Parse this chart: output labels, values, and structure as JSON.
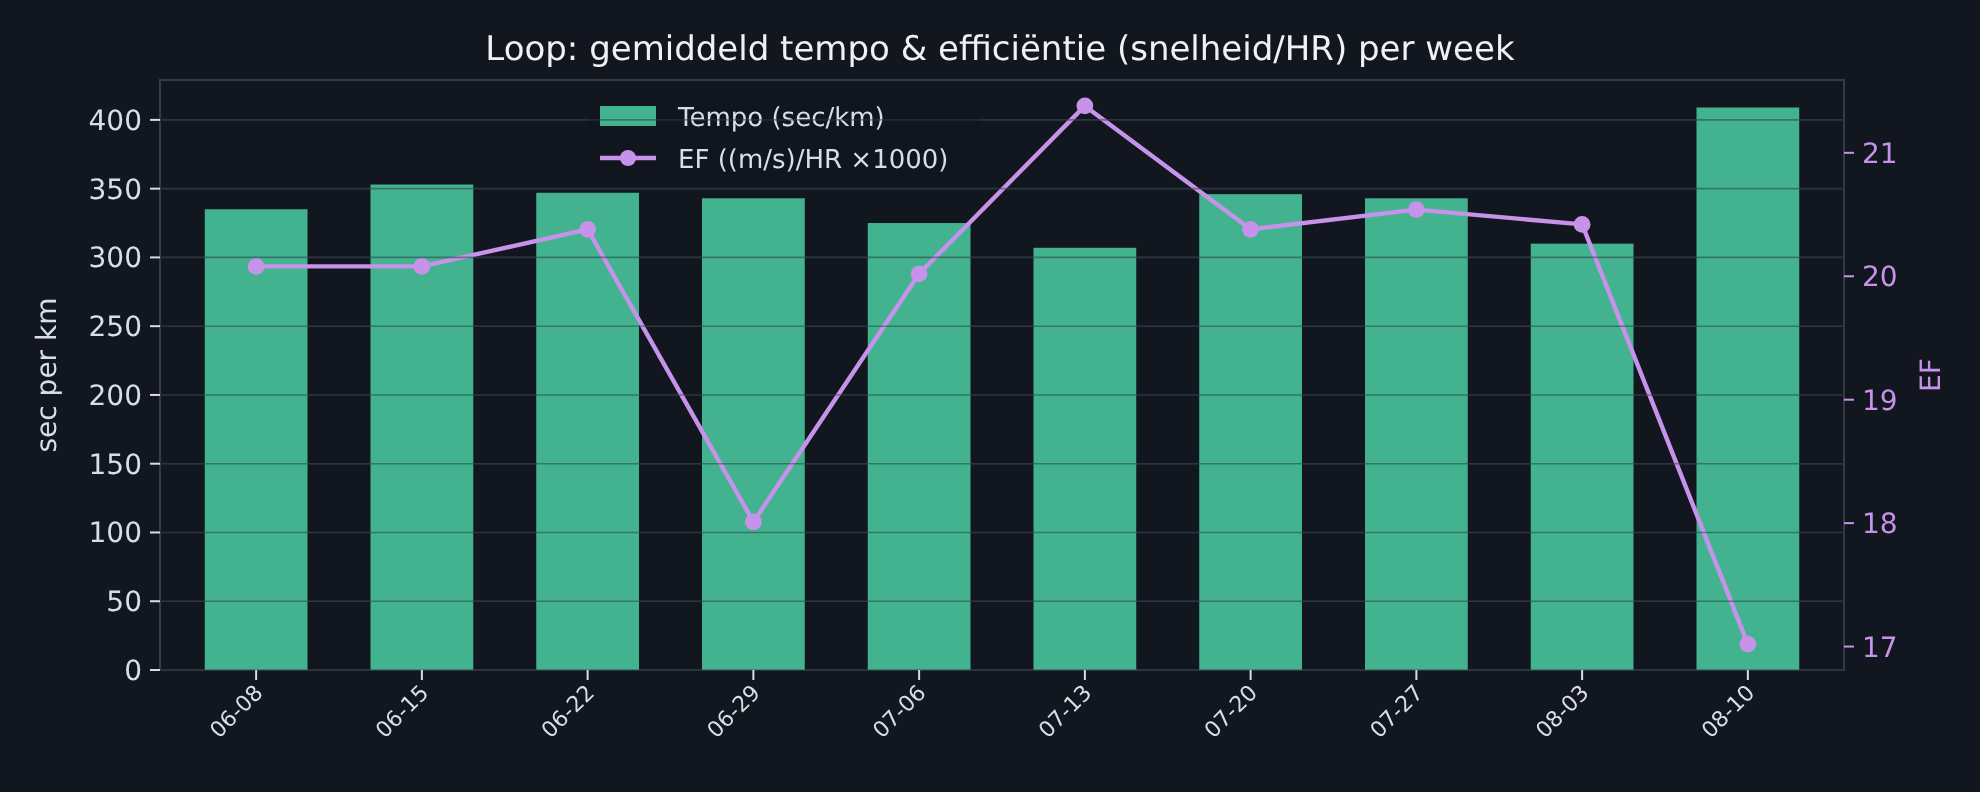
{
  "chart_data": {
    "type": "bar",
    "title": "Loop: gemiddeld tempo & efficiëntie (snelheid/HR) per week",
    "ylabel": "sec per km",
    "y2label": "EF",
    "categories": [
      "06-08",
      "06-15",
      "06-22",
      "06-29",
      "07-06",
      "07-13",
      "07-20",
      "07-27",
      "08-03",
      "08-10"
    ],
    "series": [
      {
        "name": "Tempo (sec/km)",
        "color": "#43b38f",
        "values": [
          335,
          353,
          347,
          343,
          325,
          307,
          346,
          343,
          310,
          409
        ]
      },
      {
        "name": "EF ((m/s)/HR ×1000)",
        "type": "line",
        "axis": "y2",
        "color": "#c792ea",
        "marker": "circle",
        "values": [
          20.08,
          20.08,
          20.38,
          18.01,
          20.02,
          21.38,
          20.38,
          20.54,
          20.42,
          17.02
        ]
      }
    ],
    "ylim": [
      0,
      429
    ],
    "yticks": [
      0,
      50,
      100,
      150,
      200,
      250,
      300,
      350,
      400
    ],
    "y2lim": [
      16.81,
      21.59
    ],
    "y2ticks": [
      17,
      18,
      19,
      20,
      21
    ],
    "grid": "y",
    "legend": "top"
  }
}
